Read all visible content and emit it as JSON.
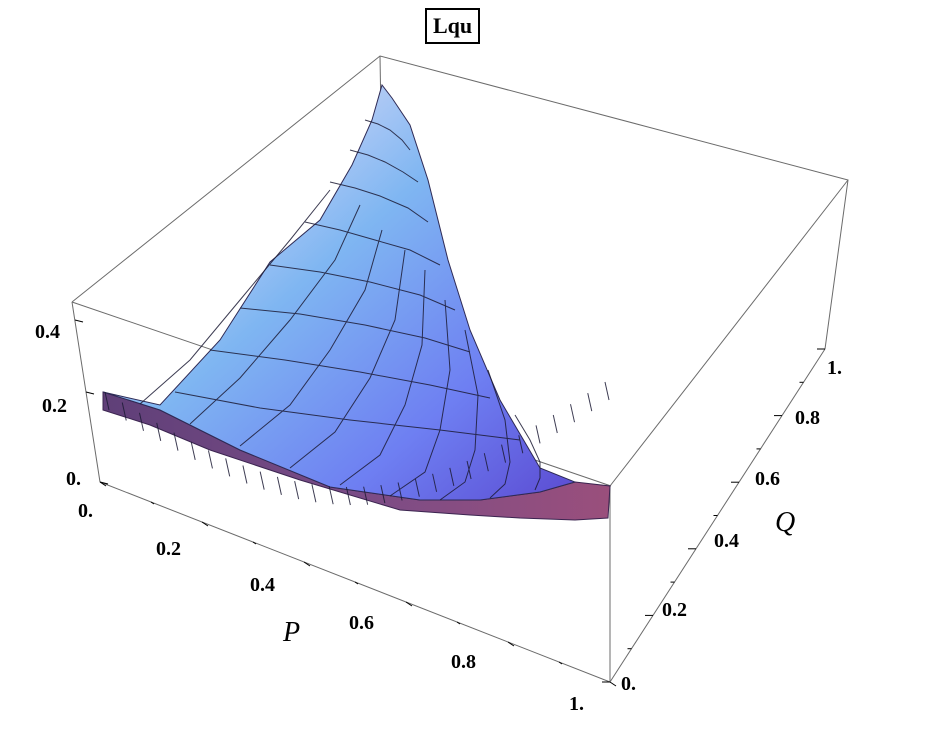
{
  "chart_data": {
    "type": "surface3d",
    "title": "Lqu",
    "xlabel": "P",
    "ylabel": "Q",
    "zlabel": "",
    "xlim": [
      0,
      1
    ],
    "ylim": [
      0,
      1
    ],
    "zlim": [
      0,
      0.45
    ],
    "x_ticks": [
      "0.",
      "0.2",
      "0.4",
      "0.6",
      "0.8",
      "1."
    ],
    "y_ticks": [
      "0.",
      "0.2",
      "0.4",
      "0.6",
      "0.8",
      "1."
    ],
    "z_ticks": [
      "0.",
      "0.2",
      "0.4"
    ],
    "surface_samples": [
      {
        "P": 0.0,
        "Q": 0.0,
        "Lqu": 0.21
      },
      {
        "P": 0.0,
        "Q": 0.5,
        "Lqu": 0.3
      },
      {
        "P": 0.0,
        "Q": 1.0,
        "Lqu": 0.45
      },
      {
        "P": 0.5,
        "Q": 0.0,
        "Lqu": 0.02
      },
      {
        "P": 0.5,
        "Q": 0.5,
        "Lqu": 0.12
      },
      {
        "P": 0.5,
        "Q": 1.0,
        "Lqu": 0.4
      },
      {
        "P": 1.0,
        "Q": 0.0,
        "Lqu": 0.05
      },
      {
        "P": 1.0,
        "Q": 1.0,
        "Lqu": 0.45
      }
    ],
    "colors": {
      "surface_low": "#6fb8f0",
      "surface_mid": "#8a8cf0",
      "surface_high": "#6a58d8",
      "highlight": "#f6a98a",
      "underside": "#6a3f80"
    }
  }
}
